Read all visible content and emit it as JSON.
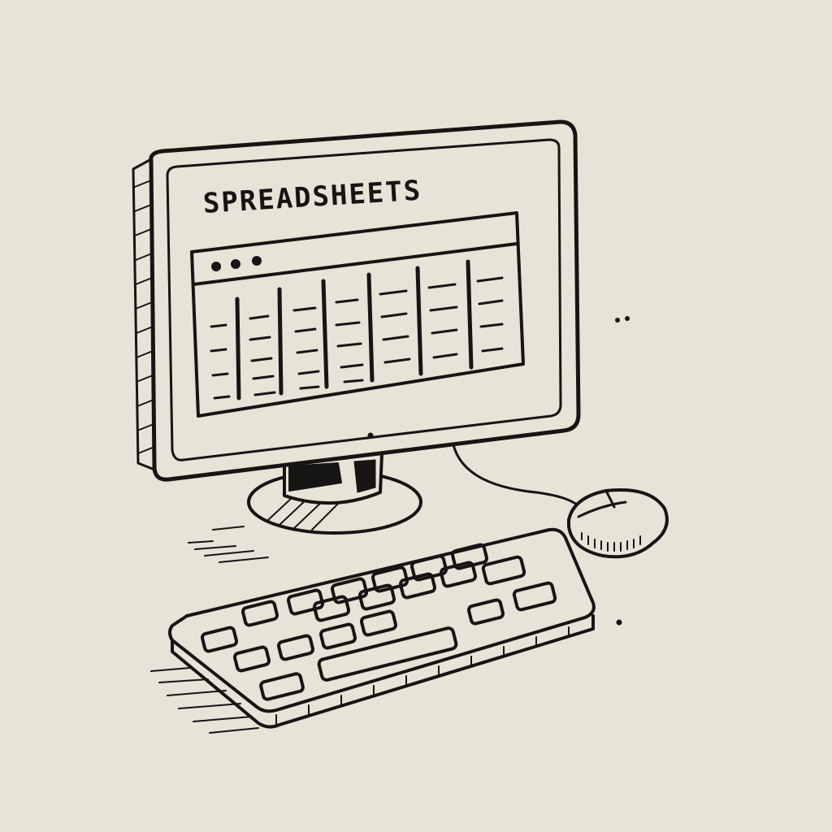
{
  "screen": {
    "title": "SPREADSHEETS"
  },
  "palette": {
    "background": "#e8e3d7",
    "ink": "#161513"
  },
  "icons": [
    "monitor-icon",
    "spreadsheet-window-icon",
    "keyboard-icon",
    "mouse-icon",
    "cable-icon"
  ]
}
